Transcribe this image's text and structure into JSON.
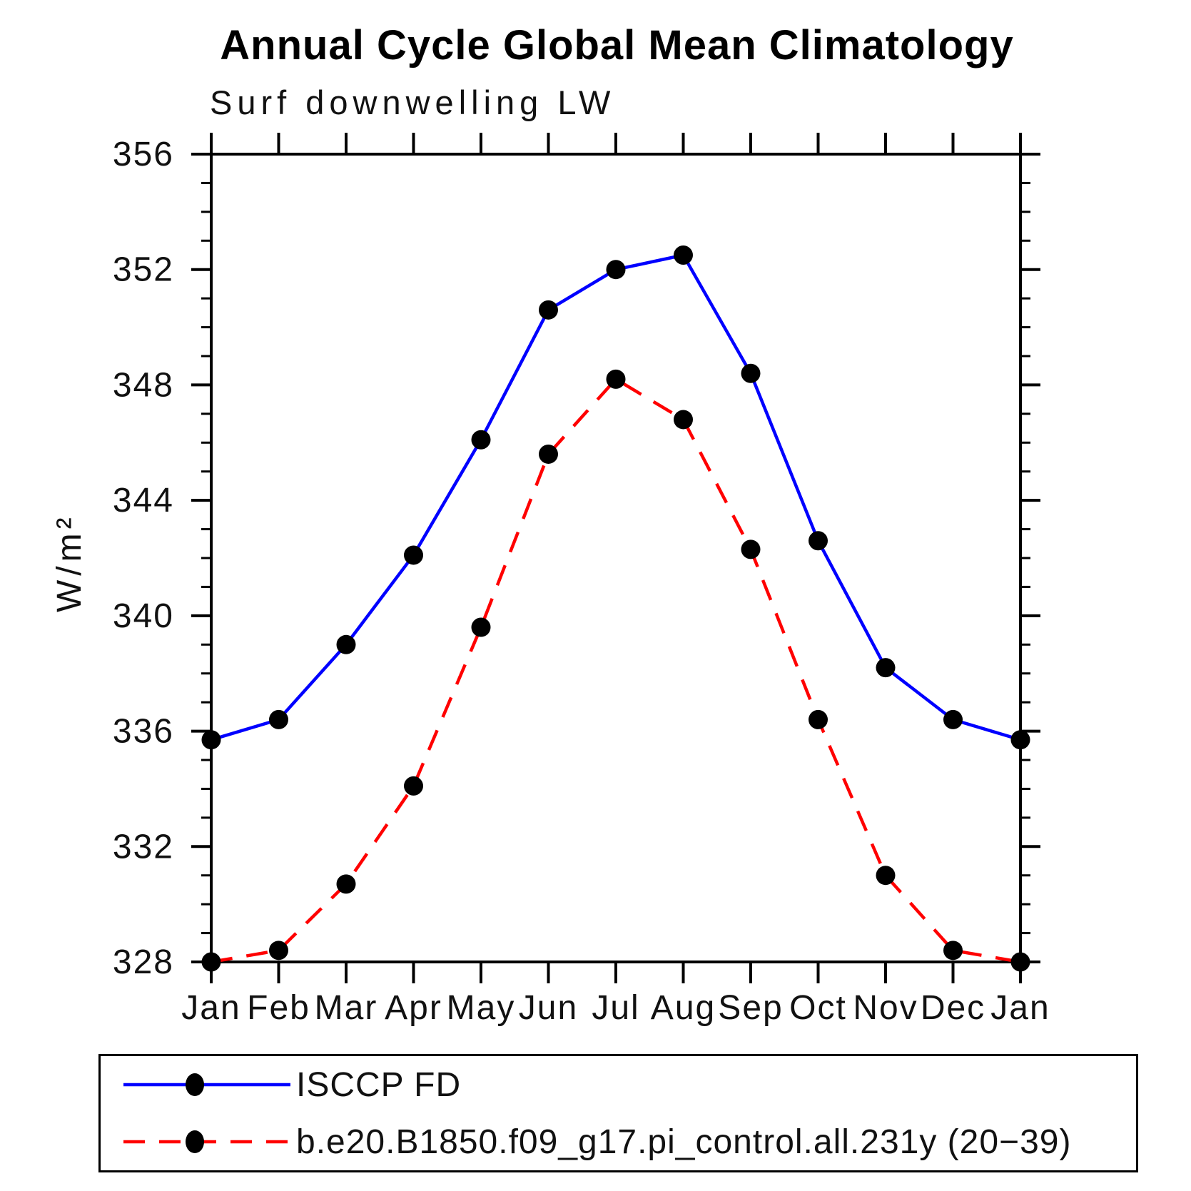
{
  "page": {
    "background": "#ffffff",
    "text_color": "#000000"
  },
  "chart_data": {
    "type": "line",
    "title": "Annual Cycle Global Mean Climatology",
    "subtitle": "Surf downwelling LW",
    "ylabel": "W/m²",
    "xlabel": "",
    "x_categories": [
      "Jan",
      "Feb",
      "Mar",
      "Apr",
      "May",
      "Jun",
      "Jul",
      "Aug",
      "Sep",
      "Oct",
      "Nov",
      "Dec",
      "Jan"
    ],
    "ylim": [
      328,
      356
    ],
    "y_major_ticks": [
      328,
      332,
      336,
      340,
      344,
      348,
      352,
      356
    ],
    "y_minor_step": 1,
    "grid": false,
    "legend_position": "bottom",
    "marker": "filled-circle",
    "marker_color": "#000000",
    "axis_color": "#000000",
    "series": [
      {
        "name": "ISCCP FD",
        "color": "#0000ff",
        "style": "solid",
        "values": [
          335.7,
          336.4,
          339.0,
          342.1,
          346.1,
          350.6,
          352.0,
          352.5,
          348.4,
          342.6,
          338.2,
          336.4,
          335.7
        ]
      },
      {
        "name": "b.e20.B1850.f09_g17.pi_control.all.231y (20−39)",
        "color": "#ff0000",
        "style": "dashed",
        "values": [
          328.0,
          328.4,
          330.7,
          334.1,
          339.6,
          345.6,
          348.2,
          346.8,
          342.3,
          336.4,
          331.0,
          328.4,
          328.0
        ]
      }
    ]
  }
}
